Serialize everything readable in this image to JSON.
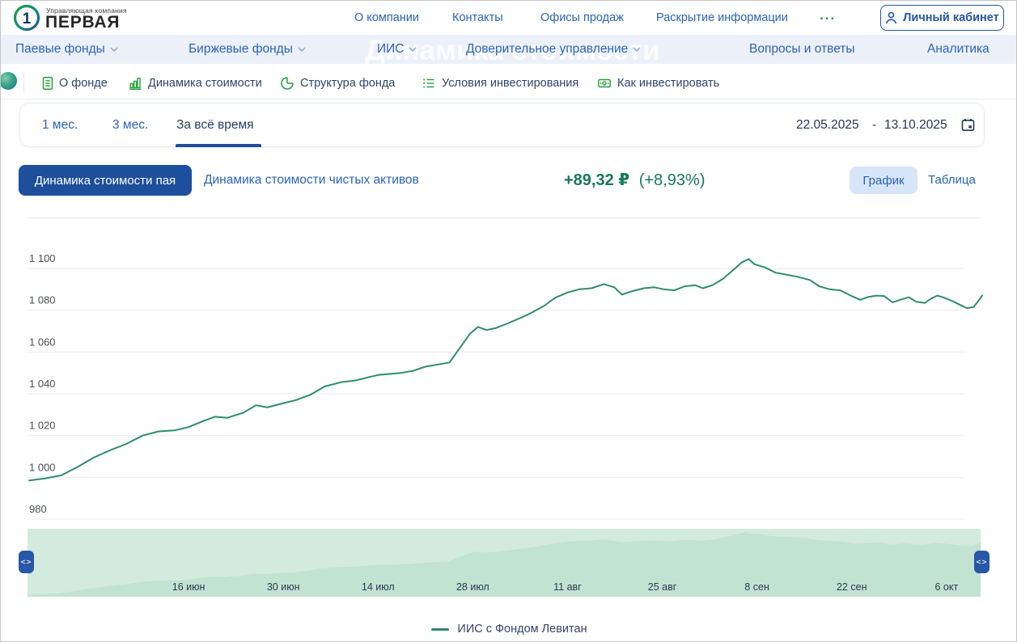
{
  "header": {
    "logo": {
      "caption": "Управляющая компания",
      "brand": "ПЕРВАЯ",
      "mark": "1"
    },
    "links": [
      "О компании",
      "Контакты",
      "Офисы продаж",
      "Раскрытие информации"
    ],
    "more_label": "...",
    "account_button": "Личный кабинет"
  },
  "nav": {
    "ghost_title": "Динамика стоимости",
    "items": [
      {
        "label": "Паевые фонды",
        "has_dropdown": true
      },
      {
        "label": "Биржевые фонды",
        "has_dropdown": true
      },
      {
        "label": "ИИС",
        "has_dropdown": true
      },
      {
        "label": "Доверительное управление",
        "has_dropdown": true
      },
      {
        "label": "Вопросы и ответы",
        "has_dropdown": false
      },
      {
        "label": "Аналитика",
        "has_dropdown": false
      }
    ]
  },
  "fund_nav": {
    "tabs": [
      {
        "label": "О фонде",
        "icon": "document-icon"
      },
      {
        "label": "Динамика стоимости",
        "icon": "bar-chart-icon"
      },
      {
        "label": "Структура фонда",
        "icon": "pie-chart-icon"
      },
      {
        "label": "Условия инвестирования",
        "icon": "checklist-icon"
      },
      {
        "label": "Как инвестировать",
        "icon": "banknote-icon"
      }
    ]
  },
  "period_bar": {
    "options": [
      "1 мес.",
      "3 мес.",
      "За всё время"
    ],
    "active": "За всё время",
    "date_from": "22.05.2025",
    "date_separator": "-",
    "date_to": "13.10.2025"
  },
  "controls": {
    "primary_button": "Динамика стоимости пая",
    "secondary_link": "Динамика стоимости чистых активов",
    "change_value": "+89,32 ₽",
    "change_percent": "(+8,93%)",
    "view_options": [
      "График",
      "Таблица"
    ],
    "active_view": "График"
  },
  "chart_data": {
    "type": "line",
    "title": "",
    "xlabel": "",
    "ylabel": "",
    "ylim": [
      975,
      1110
    ],
    "grid": true,
    "legend_position": "bottom",
    "y_ticks": [
      "1 100",
      "1 080",
      "1 060",
      "1 040",
      "1 020",
      "1 000",
      "980"
    ],
    "y_tick_values": [
      1100,
      1080,
      1060,
      1040,
      1020,
      1000,
      980
    ],
    "x_labels": [
      "16 июн",
      "30 июн",
      "14 июл",
      "28 июл",
      "11 авг",
      "25 авг",
      "8 сен",
      "22 сен",
      "6 окт"
    ],
    "series": [
      {
        "name": "ИИС с Фондом Левитан",
        "color": "#2e8c6f",
        "points": [
          [
            0.0,
            998.5
          ],
          [
            0.017,
            999.5
          ],
          [
            0.034,
            1001
          ],
          [
            0.051,
            1005
          ],
          [
            0.068,
            1009.5
          ],
          [
            0.085,
            1013
          ],
          [
            0.102,
            1016
          ],
          [
            0.119,
            1020
          ],
          [
            0.136,
            1022
          ],
          [
            0.153,
            1022.5
          ],
          [
            0.167,
            1024
          ],
          [
            0.183,
            1027
          ],
          [
            0.195,
            1029
          ],
          [
            0.208,
            1028.5
          ],
          [
            0.225,
            1031
          ],
          [
            0.238,
            1034.5
          ],
          [
            0.25,
            1033.5
          ],
          [
            0.267,
            1035.5
          ],
          [
            0.28,
            1037
          ],
          [
            0.295,
            1039.5
          ],
          [
            0.31,
            1043.5
          ],
          [
            0.327,
            1045.5
          ],
          [
            0.344,
            1046.5
          ],
          [
            0.357,
            1048
          ],
          [
            0.366,
            1049
          ],
          [
            0.378,
            1049.5
          ],
          [
            0.39,
            1050
          ],
          [
            0.403,
            1051
          ],
          [
            0.416,
            1053
          ],
          [
            0.429,
            1054
          ],
          [
            0.441,
            1055
          ],
          [
            0.452,
            1062
          ],
          [
            0.463,
            1069
          ],
          [
            0.471,
            1072
          ],
          [
            0.48,
            1070.5
          ],
          [
            0.49,
            1071.5
          ],
          [
            0.501,
            1073.5
          ],
          [
            0.514,
            1076
          ],
          [
            0.526,
            1078.5
          ],
          [
            0.54,
            1082
          ],
          [
            0.552,
            1086
          ],
          [
            0.565,
            1088.5
          ],
          [
            0.577,
            1090
          ],
          [
            0.59,
            1090.5
          ],
          [
            0.603,
            1092.5
          ],
          [
            0.614,
            1091
          ],
          [
            0.622,
            1087.5
          ],
          [
            0.632,
            1089
          ],
          [
            0.645,
            1090.5
          ],
          [
            0.656,
            1091
          ],
          [
            0.666,
            1090
          ],
          [
            0.677,
            1089.5
          ],
          [
            0.688,
            1091.5
          ],
          [
            0.699,
            1092
          ],
          [
            0.707,
            1090.5
          ],
          [
            0.717,
            1092
          ],
          [
            0.728,
            1095
          ],
          [
            0.738,
            1099
          ],
          [
            0.748,
            1103
          ],
          [
            0.755,
            1104.5
          ],
          [
            0.761,
            1102
          ],
          [
            0.772,
            1100.5
          ],
          [
            0.783,
            1098
          ],
          [
            0.795,
            1097
          ],
          [
            0.806,
            1096
          ],
          [
            0.819,
            1094.5
          ],
          [
            0.829,
            1091.5
          ],
          [
            0.84,
            1090
          ],
          [
            0.851,
            1089.5
          ],
          [
            0.863,
            1086.8
          ],
          [
            0.872,
            1085
          ],
          [
            0.88,
            1086.3
          ],
          [
            0.889,
            1087
          ],
          [
            0.897,
            1086.8
          ],
          [
            0.906,
            1083.8
          ],
          [
            0.914,
            1085
          ],
          [
            0.923,
            1086.2
          ],
          [
            0.931,
            1084
          ],
          [
            0.94,
            1083.5
          ],
          [
            0.946,
            1085.5
          ],
          [
            0.953,
            1087
          ],
          [
            0.96,
            1086
          ],
          [
            0.968,
            1084.5
          ],
          [
            0.977,
            1082.5
          ],
          [
            0.984,
            1081
          ],
          [
            0.991,
            1081.5
          ],
          [
            0.996,
            1084.5
          ],
          [
            1.0,
            1087
          ]
        ]
      }
    ]
  },
  "legend": {
    "series_label": "ИИС с Фондом Левитан"
  },
  "minimap": {
    "handle_glyph": "<>"
  },
  "colors": {
    "link_blue": "#2b63b8",
    "navy_text": "#2b3e63",
    "brand_green": "#21a038",
    "primary_blue": "#1d4f9c",
    "chart_line": "#2e8c6f",
    "change_green": "#177a5a",
    "toggle_bg": "#d7e5f8",
    "minimap_bg": "#d3eadf",
    "minimap_area": "#c2e2d2",
    "grid_line": "#ebebeb",
    "y_label": "#4b4e52",
    "x_label": "#2d3a50"
  }
}
